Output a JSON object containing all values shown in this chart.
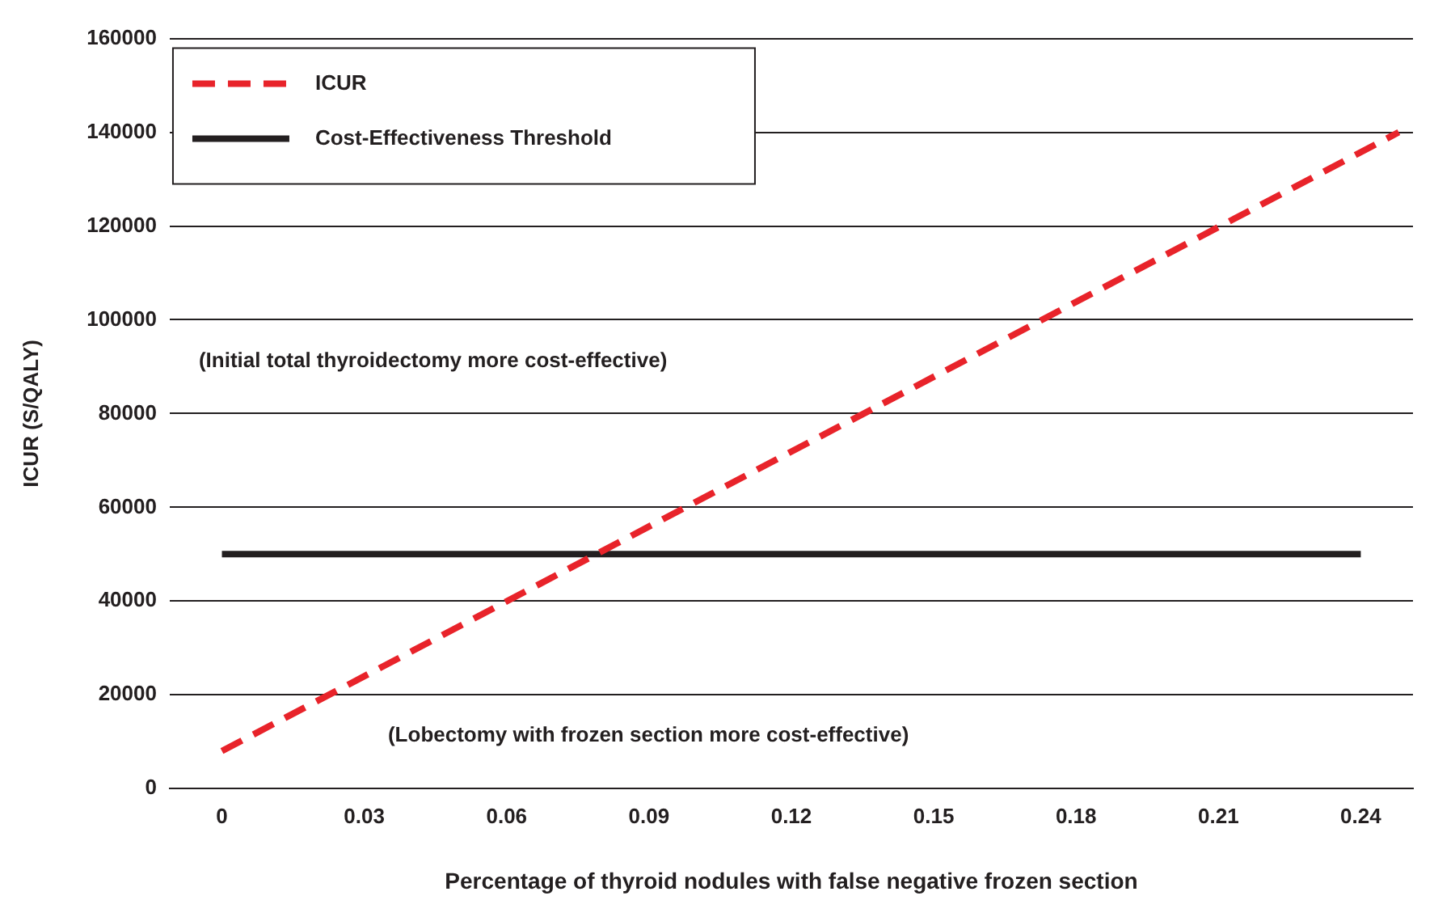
{
  "chart_data": {
    "type": "line",
    "xlabel": "Percentage of thyroid nodules with false negative frozen section",
    "ylabel": "ICUR (S/QALY)",
    "xlim": [
      -0.011,
      0.251
    ],
    "xticks": [
      0,
      0.03,
      0.06,
      0.09,
      0.12,
      0.15,
      0.18,
      0.21,
      0.24
    ],
    "ylim": [
      0,
      160000
    ],
    "yticks": [
      0,
      20000,
      40000,
      60000,
      80000,
      100000,
      120000,
      140000,
      160000
    ],
    "grid": "y",
    "legend": "top left",
    "marker": "none",
    "series": [
      {
        "name": "ICUR",
        "color": "#e8232a",
        "line_style": "dashed",
        "x": [
          0,
          0.248
        ],
        "values": [
          8000,
          140000
        ]
      },
      {
        "name": "Cost-Effectiveness Threshold",
        "color": "#231f20",
        "line_style": "solid",
        "x": [
          0,
          0.24
        ],
        "values": [
          50000,
          50000
        ]
      }
    ],
    "annotations": [
      "(Initial total thyroidectomy more cost-effective)",
      "(Lobectomy with frozen section more cost-effective)"
    ]
  }
}
